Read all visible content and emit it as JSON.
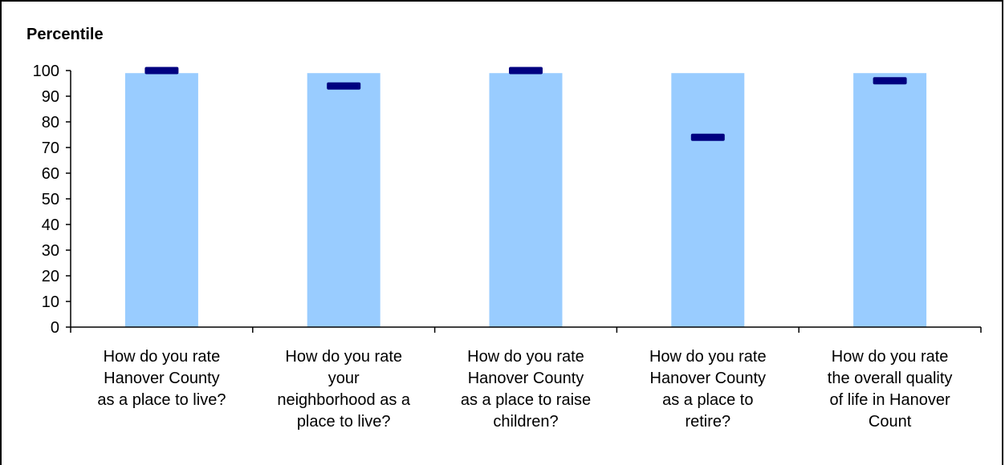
{
  "chart_data": {
    "type": "bar",
    "ylabel": "Percentile",
    "ylim": [
      0,
      100
    ],
    "yticks": [
      0,
      10,
      20,
      30,
      40,
      50,
      60,
      70,
      80,
      90,
      100
    ],
    "grid": false,
    "categories": [
      [
        "How do you rate",
        "Hanover County",
        "as a place to live?"
      ],
      [
        "How do you rate",
        "your",
        "neighborhood as a",
        "place to live?"
      ],
      [
        "How do you rate",
        "Hanover County",
        "as a place to raise",
        "children?"
      ],
      [
        "How do you rate",
        "Hanover County",
        "as a place to",
        "retire?"
      ],
      [
        "How do you rate",
        "the overall quality",
        "of life in Hanover",
        "Count"
      ]
    ],
    "series": [
      {
        "type": "bar",
        "values": [
          99,
          99,
          99,
          99,
          99
        ]
      },
      {
        "type": "marker",
        "values": [
          100,
          94,
          100,
          74,
          96
        ]
      }
    ],
    "colors": {
      "bar": "#99CCFF",
      "marker": "#000080",
      "axis": "#000000"
    }
  }
}
